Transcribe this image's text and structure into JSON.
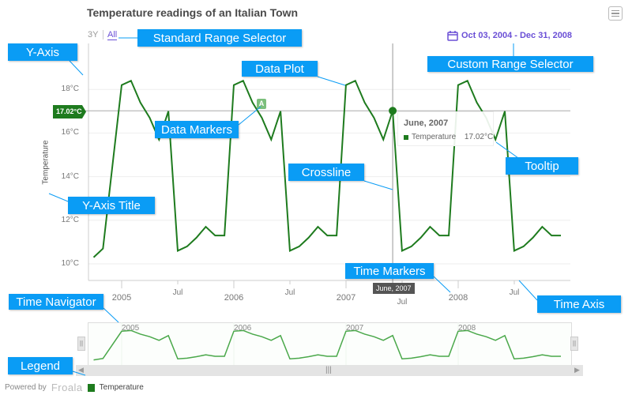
{
  "chart_data": {
    "type": "line",
    "title": "Temperature readings of an Italian Town",
    "ylabel": "Temperature",
    "ylim": [
      9.6,
      19.5
    ],
    "y_ticks": [
      "10°C",
      "12°C",
      "14°C",
      "16°C",
      "18°C"
    ],
    "y_tick_values": [
      10,
      12,
      14,
      16,
      18
    ],
    "x_year_ticks": [
      "2005",
      "2006",
      "2007",
      "2008"
    ],
    "x_month_ticks": [
      "Jul",
      "Jul",
      "Jul",
      "Jul"
    ],
    "series": [
      {
        "name": "Temperature",
        "color": "#1e7b1e",
        "x": [
          "2004-10",
          "2004-11",
          "2005-01",
          "2005-02",
          "2005-03",
          "2005-04",
          "2005-05",
          "2005-06",
          "2005-07",
          "2005-08",
          "2005-09",
          "2005-10",
          "2005-11",
          "2005-12",
          "2006-01",
          "2006-02",
          "2006-03",
          "2006-04",
          "2006-05",
          "2006-06",
          "2006-07",
          "2006-08",
          "2006-09",
          "2006-10",
          "2006-11",
          "2006-12",
          "2007-01",
          "2007-02",
          "2007-03",
          "2007-04",
          "2007-05",
          "2007-06",
          "2007-07",
          "2007-08",
          "2007-09",
          "2007-10",
          "2007-11",
          "2007-12",
          "2008-01",
          "2008-02",
          "2008-03",
          "2008-04",
          "2008-05",
          "2008-06",
          "2008-07",
          "2008-08",
          "2008-09",
          "2008-10",
          "2008-11",
          "2008-12"
        ],
        "values": [
          10.3,
          10.7,
          18.2,
          18.4,
          17.4,
          16.7,
          15.7,
          17.0,
          10.6,
          10.8,
          11.2,
          11.7,
          11.3,
          11.3,
          18.2,
          18.4,
          17.4,
          16.7,
          15.7,
          17.0,
          10.6,
          10.8,
          11.2,
          11.7,
          11.3,
          11.3,
          18.2,
          18.4,
          17.4,
          16.7,
          15.7,
          17.02,
          10.6,
          10.8,
          11.2,
          11.7,
          11.3,
          11.3,
          18.2,
          18.4,
          17.4,
          16.7,
          15.7,
          17.0,
          10.6,
          10.8,
          11.2,
          11.7,
          11.3,
          11.3
        ]
      }
    ]
  },
  "range_selector": {
    "options": [
      "3Y",
      "All"
    ],
    "selected": "All"
  },
  "custom_range": "Oct 03, 2004 - Dec 31, 2008",
  "crossline_value": "17.02°C",
  "tooltip": {
    "header": "June, 2007",
    "series": "Temperature",
    "value": "17.02°C"
  },
  "time_marker": "June, 2007",
  "data_marker": "A",
  "navigator_years": [
    "2005",
    "2006",
    "2007",
    "2008"
  ],
  "legend": {
    "powered_by": "Powered by",
    "brand": "Froala",
    "item": "Temperature"
  },
  "callouts": {
    "y_axis": "Y-Axis",
    "standard_range": "Standard Range Selector",
    "data_plot": "Data Plot",
    "custom_range": "Custom Range Selector",
    "data_markers": "Data Markers",
    "crossline": "Crossline",
    "tooltip": "Tooltip",
    "y_axis_title": "Y-Axis Title",
    "time_markers": "Time Markers",
    "time_axis": "Time Axis",
    "time_navigator": "Time Navigator",
    "legend": "Legend"
  }
}
